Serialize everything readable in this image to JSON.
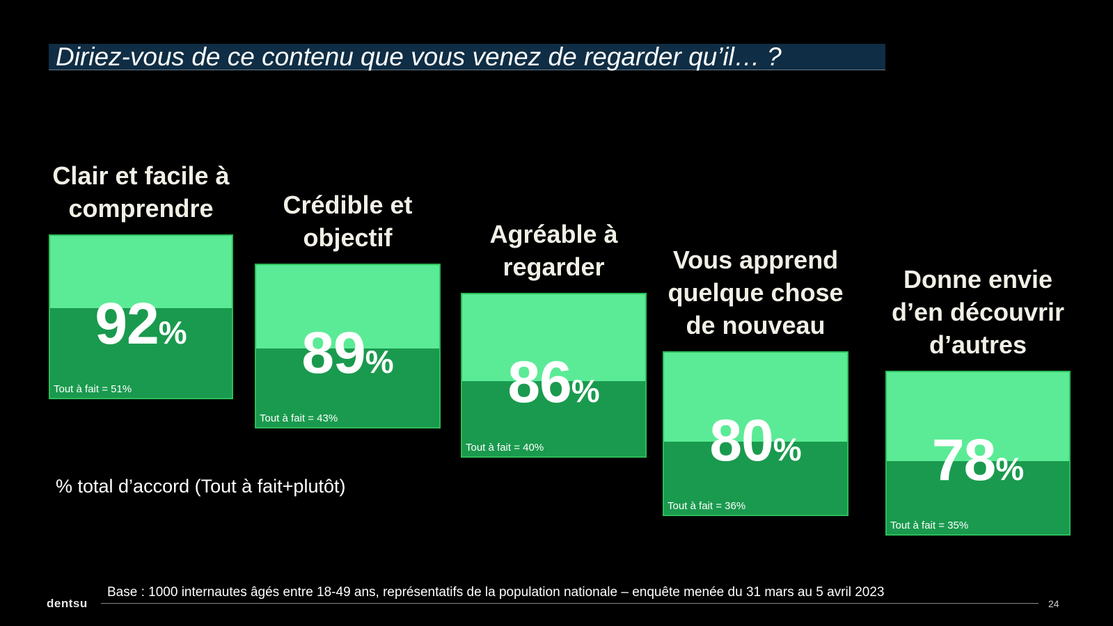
{
  "title": "Diriez-vous de ce contenu que vous venez de regarder qu’il… ?",
  "legend_note": "% total d’accord (Tout à fait+plutôt)",
  "footer": {
    "brand": "dentsu",
    "base": "Base : 1000 internautes âgés entre 18-49 ans, représentatifs de la population nationale – enquête menée du 31 mars au 5 avril 2023",
    "page_number": "24"
  },
  "colors": {
    "total_fill": "#5beb96",
    "tout_a_fait_fill": "#1a9a4e",
    "title_bar": "#0f2d44",
    "label_text": "#f2f0e6"
  },
  "chart_data": {
    "type": "bar",
    "unit": "%",
    "categories": [
      [
        "Clair et facile à",
        "comprendre"
      ],
      [
        "Crédible et",
        "objectif"
      ],
      [
        "Agréable à",
        "regarder"
      ],
      [
        "Vous apprend",
        "quelque chose",
        "de nouveau"
      ],
      [
        "Donne envie",
        "d’en découvrir",
        "d’autres"
      ]
    ],
    "series": [
      {
        "name": "% total d’accord (Tout à fait+plutôt)",
        "values": [
          92,
          89,
          86,
          80,
          78
        ]
      },
      {
        "name": "Tout à fait",
        "values": [
          51,
          43,
          40,
          36,
          35
        ]
      }
    ],
    "value_labels": [
      "92",
      "89",
      "86",
      "80",
      "78"
    ],
    "pct_sign": "%",
    "sub_labels": [
      "Tout à fait = 51%",
      "Tout à fait = 43%",
      "Tout à fait = 40%",
      "Tout à fait = 36%",
      "Tout à fait = 35%"
    ]
  }
}
